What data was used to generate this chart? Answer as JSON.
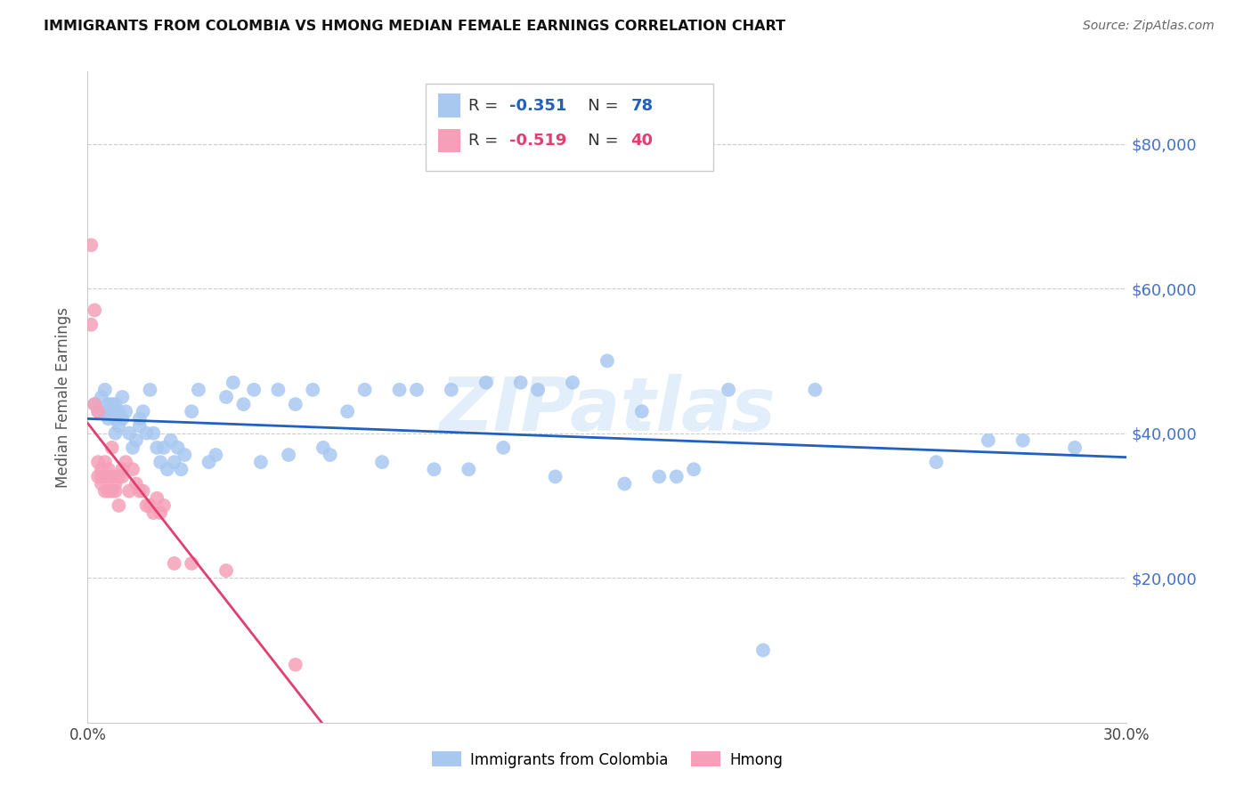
{
  "title": "IMMIGRANTS FROM COLOMBIA VS HMONG MEDIAN FEMALE EARNINGS CORRELATION CHART",
  "source": "Source: ZipAtlas.com",
  "ylabel": "Median Female Earnings",
  "xlim": [
    0.0,
    0.3
  ],
  "ylim": [
    0,
    90000
  ],
  "xticks": [
    0.0,
    0.05,
    0.1,
    0.15,
    0.2,
    0.25,
    0.3
  ],
  "xtick_labels": [
    "0.0%",
    "",
    "",
    "",
    "",
    "",
    "30.0%"
  ],
  "ytick_values_right": [
    80000,
    60000,
    40000,
    20000
  ],
  "ytick_labels_right": [
    "$80,000",
    "$60,000",
    "$40,000",
    "$20,000"
  ],
  "colombia_R": "-0.351",
  "colombia_N": "78",
  "hmong_R": "-0.519",
  "hmong_N": "40",
  "colombia_color": "#A8C8F0",
  "hmong_color": "#F5A0B8",
  "colombia_line_color": "#2060C0",
  "hmong_line_color": "#E04070",
  "watermark": "ZIPatlas",
  "legend_label_colombia": "Immigrants from Colombia",
  "legend_label_hmong": "Hmong",
  "colombia_x": [
    0.002,
    0.003,
    0.004,
    0.004,
    0.005,
    0.005,
    0.006,
    0.006,
    0.007,
    0.007,
    0.008,
    0.008,
    0.008,
    0.009,
    0.009,
    0.01,
    0.01,
    0.011,
    0.012,
    0.013,
    0.014,
    0.015,
    0.015,
    0.016,
    0.017,
    0.018,
    0.019,
    0.02,
    0.021,
    0.022,
    0.023,
    0.024,
    0.025,
    0.026,
    0.027,
    0.028,
    0.03,
    0.032,
    0.035,
    0.037,
    0.04,
    0.042,
    0.045,
    0.048,
    0.05,
    0.055,
    0.058,
    0.06,
    0.065,
    0.068,
    0.07,
    0.075,
    0.08,
    0.085,
    0.09,
    0.095,
    0.1,
    0.105,
    0.11,
    0.115,
    0.12,
    0.125,
    0.13,
    0.135,
    0.14,
    0.15,
    0.16,
    0.17,
    0.195,
    0.21,
    0.245,
    0.26,
    0.27,
    0.285,
    0.175,
    0.155,
    0.185,
    0.165
  ],
  "colombia_y": [
    44000,
    43000,
    45000,
    43000,
    46000,
    43000,
    44000,
    42000,
    44000,
    43000,
    44000,
    42000,
    40000,
    43000,
    41000,
    45000,
    42000,
    43000,
    40000,
    38000,
    39000,
    41000,
    42000,
    43000,
    40000,
    46000,
    40000,
    38000,
    36000,
    38000,
    35000,
    39000,
    36000,
    38000,
    35000,
    37000,
    43000,
    46000,
    36000,
    37000,
    45000,
    47000,
    44000,
    46000,
    36000,
    46000,
    37000,
    44000,
    46000,
    38000,
    37000,
    43000,
    46000,
    36000,
    46000,
    46000,
    35000,
    46000,
    35000,
    47000,
    38000,
    47000,
    46000,
    34000,
    47000,
    50000,
    43000,
    34000,
    10000,
    46000,
    36000,
    39000,
    39000,
    38000,
    35000,
    33000,
    46000,
    34000
  ],
  "hmong_x": [
    0.001,
    0.001,
    0.002,
    0.002,
    0.003,
    0.003,
    0.003,
    0.004,
    0.004,
    0.004,
    0.005,
    0.005,
    0.005,
    0.006,
    0.006,
    0.007,
    0.007,
    0.007,
    0.008,
    0.008,
    0.009,
    0.009,
    0.01,
    0.01,
    0.011,
    0.012,
    0.013,
    0.014,
    0.015,
    0.016,
    0.017,
    0.018,
    0.019,
    0.02,
    0.021,
    0.022,
    0.025,
    0.03,
    0.04,
    0.06
  ],
  "hmong_y": [
    66000,
    55000,
    57000,
    44000,
    36000,
    34000,
    43000,
    35000,
    34000,
    33000,
    36000,
    34000,
    32000,
    35000,
    32000,
    34000,
    38000,
    32000,
    33000,
    32000,
    34000,
    30000,
    35000,
    34000,
    36000,
    32000,
    35000,
    33000,
    32000,
    32000,
    30000,
    30000,
    29000,
    31000,
    29000,
    30000,
    22000,
    22000,
    21000,
    8000
  ]
}
